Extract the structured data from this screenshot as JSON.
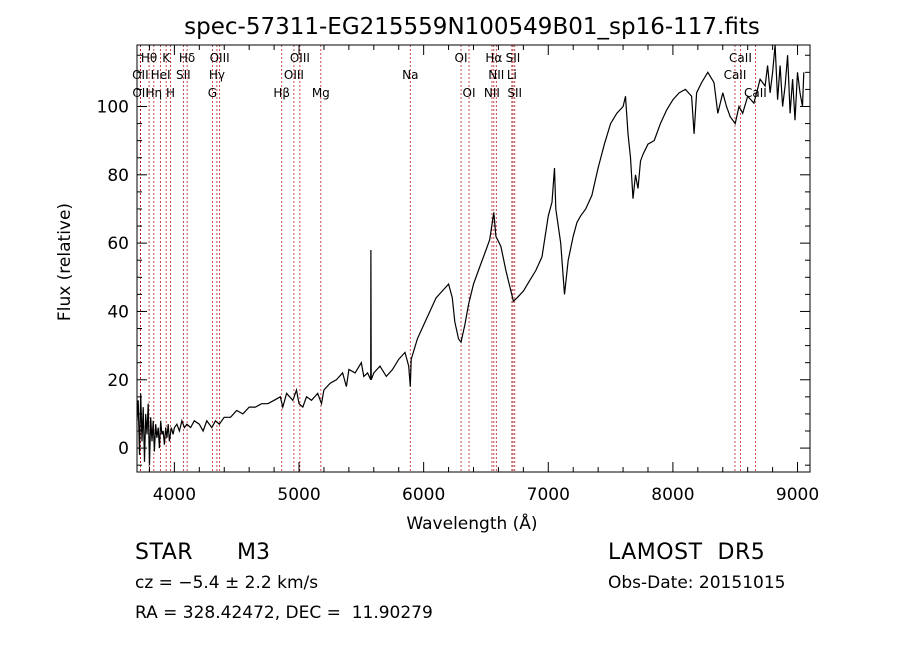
{
  "chart_data": {
    "type": "line",
    "title": "spec-57311-EG215559N100549B01_sp16-117.fits",
    "xlabel": "Wavelength (Å)",
    "ylabel": "Flux (relative)",
    "xlim": [
      3700,
      9100
    ],
    "ylim": [
      -7,
      118
    ],
    "x_ticks": [
      4000,
      5000,
      6000,
      7000,
      8000,
      9000
    ],
    "y_ticks": [
      0,
      20,
      40,
      60,
      80,
      100
    ],
    "grid": false,
    "series": [
      {
        "color": "#000000",
        "points": [
          [
            3700,
            8
          ],
          [
            3710,
            14
          ],
          [
            3720,
            -2
          ],
          [
            3730,
            16
          ],
          [
            3740,
            2
          ],
          [
            3750,
            12
          ],
          [
            3760,
            -4
          ],
          [
            3770,
            10
          ],
          [
            3780,
            4
          ],
          [
            3790,
            13
          ],
          [
            3800,
            -5
          ],
          [
            3810,
            9
          ],
          [
            3820,
            2
          ],
          [
            3830,
            8
          ],
          [
            3840,
            -1
          ],
          [
            3850,
            7
          ],
          [
            3860,
            3
          ],
          [
            3870,
            6
          ],
          [
            3880,
            0
          ],
          [
            3890,
            8
          ],
          [
            3900,
            4
          ],
          [
            3910,
            5
          ],
          [
            3920,
            1
          ],
          [
            3930,
            6
          ],
          [
            3940,
            3
          ],
          [
            3950,
            7
          ],
          [
            3960,
            2
          ],
          [
            3975,
            6
          ],
          [
            3990,
            4
          ],
          [
            4000,
            6
          ],
          [
            4020,
            7
          ],
          [
            4040,
            5
          ],
          [
            4060,
            8
          ],
          [
            4080,
            6
          ],
          [
            4100,
            7
          ],
          [
            4130,
            6
          ],
          [
            4160,
            8
          ],
          [
            4200,
            7
          ],
          [
            4230,
            5
          ],
          [
            4260,
            8
          ],
          [
            4300,
            6
          ],
          [
            4330,
            8
          ],
          [
            4360,
            7
          ],
          [
            4400,
            9
          ],
          [
            4450,
            9
          ],
          [
            4500,
            11
          ],
          [
            4550,
            10
          ],
          [
            4600,
            12
          ],
          [
            4650,
            12
          ],
          [
            4700,
            13
          ],
          [
            4750,
            13
          ],
          [
            4800,
            14
          ],
          [
            4850,
            15
          ],
          [
            4870,
            12
          ],
          [
            4900,
            16
          ],
          [
            4950,
            14
          ],
          [
            4980,
            17
          ],
          [
            5000,
            13
          ],
          [
            5030,
            12
          ],
          [
            5060,
            15
          ],
          [
            5100,
            14
          ],
          [
            5150,
            16
          ],
          [
            5180,
            13
          ],
          [
            5200,
            17
          ],
          [
            5250,
            19
          ],
          [
            5300,
            20
          ],
          [
            5350,
            22
          ],
          [
            5380,
            18
          ],
          [
            5400,
            23
          ],
          [
            5450,
            22
          ],
          [
            5500,
            25
          ],
          [
            5520,
            21
          ],
          [
            5550,
            22
          ],
          [
            5575,
            20
          ],
          [
            5577,
            58
          ],
          [
            5579,
            20
          ],
          [
            5600,
            22
          ],
          [
            5650,
            24
          ],
          [
            5700,
            21
          ],
          [
            5750,
            23
          ],
          [
            5800,
            26
          ],
          [
            5850,
            28
          ],
          [
            5880,
            24
          ],
          [
            5893,
            18
          ],
          [
            5900,
            26
          ],
          [
            5950,
            32
          ],
          [
            6000,
            36
          ],
          [
            6050,
            40
          ],
          [
            6100,
            44
          ],
          [
            6150,
            46
          ],
          [
            6200,
            48
          ],
          [
            6230,
            44
          ],
          [
            6250,
            37
          ],
          [
            6280,
            32
          ],
          [
            6300,
            31
          ],
          [
            6330,
            36
          ],
          [
            6360,
            42
          ],
          [
            6400,
            48
          ],
          [
            6450,
            53
          ],
          [
            6500,
            58
          ],
          [
            6530,
            61
          ],
          [
            6563,
            69
          ],
          [
            6580,
            62
          ],
          [
            6620,
            59
          ],
          [
            6660,
            52
          ],
          [
            6700,
            46
          ],
          [
            6720,
            43
          ],
          [
            6750,
            44
          ],
          [
            6800,
            46
          ],
          [
            6850,
            49
          ],
          [
            6900,
            52
          ],
          [
            6950,
            56
          ],
          [
            7000,
            68
          ],
          [
            7030,
            72
          ],
          [
            7050,
            82
          ],
          [
            7060,
            70
          ],
          [
            7100,
            60
          ],
          [
            7130,
            45
          ],
          [
            7160,
            55
          ],
          [
            7200,
            62
          ],
          [
            7230,
            66
          ],
          [
            7260,
            68
          ],
          [
            7300,
            70
          ],
          [
            7350,
            74
          ],
          [
            7400,
            82
          ],
          [
            7450,
            89
          ],
          [
            7500,
            95
          ],
          [
            7550,
            98
          ],
          [
            7600,
            100
          ],
          [
            7620,
            103
          ],
          [
            7640,
            92
          ],
          [
            7660,
            85
          ],
          [
            7680,
            73
          ],
          [
            7700,
            80
          ],
          [
            7720,
            76
          ],
          [
            7740,
            84
          ],
          [
            7760,
            86
          ],
          [
            7800,
            89
          ],
          [
            7850,
            90
          ],
          [
            7900,
            95
          ],
          [
            7950,
            99
          ],
          [
            8000,
            102
          ],
          [
            8050,
            104
          ],
          [
            8100,
            105
          ],
          [
            8150,
            103
          ],
          [
            8170,
            92
          ],
          [
            8190,
            104
          ],
          [
            8230,
            107
          ],
          [
            8280,
            110
          ],
          [
            8330,
            107
          ],
          [
            8360,
            98
          ],
          [
            8400,
            104
          ],
          [
            8430,
            100
          ],
          [
            8460,
            97
          ],
          [
            8500,
            95
          ],
          [
            8530,
            100
          ],
          [
            8560,
            98
          ],
          [
            8600,
            103
          ],
          [
            8650,
            101
          ],
          [
            8700,
            108
          ],
          [
            8740,
            106
          ],
          [
            8760,
            112
          ],
          [
            8780,
            104
          ],
          [
            8800,
            110
          ],
          [
            8820,
            118
          ],
          [
            8840,
            102
          ],
          [
            8860,
            112
          ],
          [
            8880,
            100
          ],
          [
            8900,
            106
          ],
          [
            8920,
            115
          ],
          [
            8940,
            98
          ],
          [
            8960,
            108
          ],
          [
            8980,
            96
          ],
          [
            9000,
            110
          ],
          [
            9020,
            104
          ],
          [
            9040,
            100
          ],
          [
            9050,
            110
          ]
        ]
      }
    ],
    "lines": [
      {
        "label": "Hθ",
        "x": 3797,
        "row": 0
      },
      {
        "label": "K",
        "x": 3934,
        "row": 0
      },
      {
        "label": "Hδ",
        "x": 4102,
        "row": 0
      },
      {
        "label": "OIII",
        "x": 4363,
        "row": 0
      },
      {
        "label": "OIII",
        "x": 5007,
        "row": 0
      },
      {
        "label": "OI",
        "x": 6300,
        "row": 0
      },
      {
        "label": "Hα",
        "x": 6563,
        "row": 0
      },
      {
        "label": "SII",
        "x": 6717,
        "row": 0
      },
      {
        "label": "CaII",
        "x": 8542,
        "row": 0
      },
      {
        "label": "OII",
        "x": 3727,
        "row": 1
      },
      {
        "label": "HeI",
        "x": 3889,
        "row": 1
      },
      {
        "label": "SII",
        "x": 4072,
        "row": 1
      },
      {
        "label": "Hγ",
        "x": 4341,
        "row": 1
      },
      {
        "label": "OIII",
        "x": 4959,
        "row": 1
      },
      {
        "label": "Na",
        "x": 5893,
        "row": 1
      },
      {
        "label": "NII",
        "x": 6583,
        "row": 1
      },
      {
        "label": "Li",
        "x": 6708,
        "row": 1
      },
      {
        "label": "CaII",
        "x": 8498,
        "row": 1
      },
      {
        "label": "OII",
        "x": 3729,
        "row": 2
      },
      {
        "label": "Hη",
        "x": 3835,
        "row": 2
      },
      {
        "label": "H",
        "x": 3969,
        "row": 2
      },
      {
        "label": "G",
        "x": 4305,
        "row": 2
      },
      {
        "label": "Hβ",
        "x": 4861,
        "row": 2
      },
      {
        "label": "Mg",
        "x": 5175,
        "row": 2
      },
      {
        "label": "OI",
        "x": 6364,
        "row": 2
      },
      {
        "label": "NII",
        "x": 6548,
        "row": 2
      },
      {
        "label": "SII",
        "x": 6731,
        "row": 2
      },
      {
        "label": "CaII",
        "x": 8662,
        "row": 2
      }
    ],
    "line_marker_color": "#b22222",
    "spectrum_color": "#000000"
  },
  "info": {
    "object_class": "STAR",
    "subclass": "M3",
    "survey": "LAMOST  DR5",
    "cz": "cz = −5.4 ± 2.2 km/s",
    "obs_date": "Obs-Date: 20151015",
    "radec": "RA = 328.42472, DEC =  11.90279"
  }
}
